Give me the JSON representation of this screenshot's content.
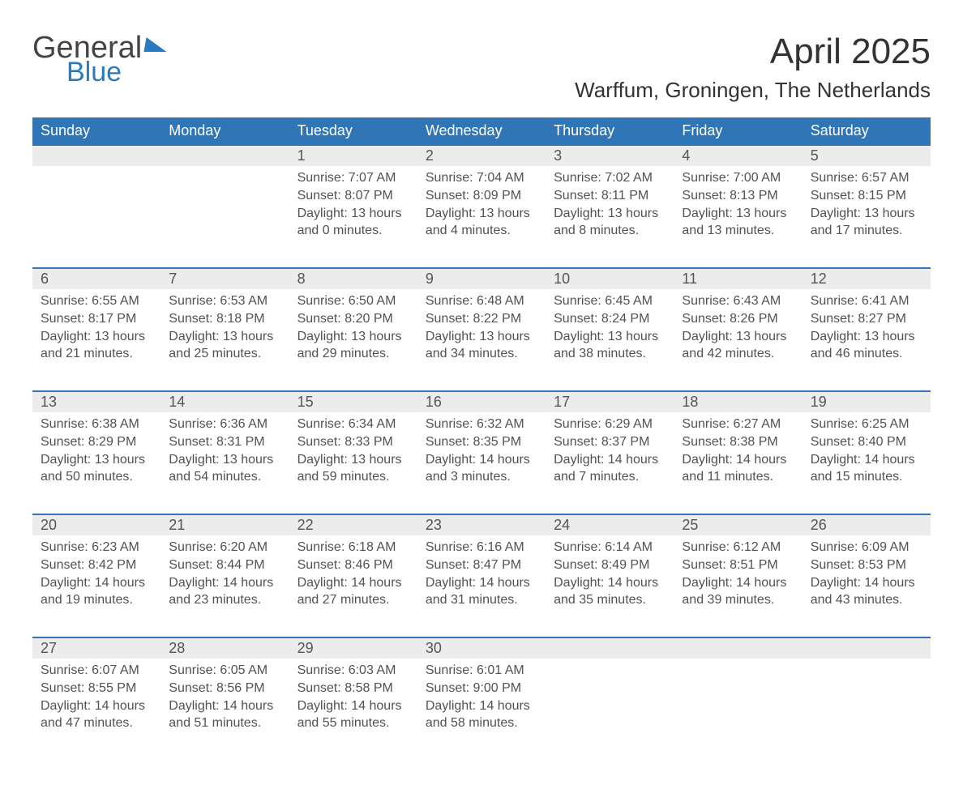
{
  "brand": {
    "word1": "General",
    "word2": "Blue"
  },
  "title": "April 2025",
  "location": "Warffum, Groningen, The Netherlands",
  "colors": {
    "header_bg": "#3075b6",
    "header_text": "#ffffff",
    "daynum_bg": "#ececec",
    "row_border": "#3075b6",
    "body_text": "#525252",
    "background": "#ffffff",
    "brand_accent": "#2a7abf"
  },
  "typography": {
    "title_fontsize": 44,
    "location_fontsize": 26,
    "header_fontsize": 18,
    "daynum_fontsize": 18,
    "cell_fontsize": 16
  },
  "layout": {
    "columns": 7,
    "body_rows": 5,
    "week_start": "Sunday"
  },
  "day_headers": [
    "Sunday",
    "Monday",
    "Tuesday",
    "Wednesday",
    "Thursday",
    "Friday",
    "Saturday"
  ],
  "weeks": [
    [
      null,
      null,
      {
        "n": "1",
        "sunrise": "7:07 AM",
        "sunset": "8:07 PM",
        "dl1": "13 hours",
        "dl2": "0 minutes"
      },
      {
        "n": "2",
        "sunrise": "7:04 AM",
        "sunset": "8:09 PM",
        "dl1": "13 hours",
        "dl2": "4 minutes"
      },
      {
        "n": "3",
        "sunrise": "7:02 AM",
        "sunset": "8:11 PM",
        "dl1": "13 hours",
        "dl2": "8 minutes"
      },
      {
        "n": "4",
        "sunrise": "7:00 AM",
        "sunset": "8:13 PM",
        "dl1": "13 hours",
        "dl2": "13 minutes"
      },
      {
        "n": "5",
        "sunrise": "6:57 AM",
        "sunset": "8:15 PM",
        "dl1": "13 hours",
        "dl2": "17 minutes"
      }
    ],
    [
      {
        "n": "6",
        "sunrise": "6:55 AM",
        "sunset": "8:17 PM",
        "dl1": "13 hours",
        "dl2": "21 minutes"
      },
      {
        "n": "7",
        "sunrise": "6:53 AM",
        "sunset": "8:18 PM",
        "dl1": "13 hours",
        "dl2": "25 minutes"
      },
      {
        "n": "8",
        "sunrise": "6:50 AM",
        "sunset": "8:20 PM",
        "dl1": "13 hours",
        "dl2": "29 minutes"
      },
      {
        "n": "9",
        "sunrise": "6:48 AM",
        "sunset": "8:22 PM",
        "dl1": "13 hours",
        "dl2": "34 minutes"
      },
      {
        "n": "10",
        "sunrise": "6:45 AM",
        "sunset": "8:24 PM",
        "dl1": "13 hours",
        "dl2": "38 minutes"
      },
      {
        "n": "11",
        "sunrise": "6:43 AM",
        "sunset": "8:26 PM",
        "dl1": "13 hours",
        "dl2": "42 minutes"
      },
      {
        "n": "12",
        "sunrise": "6:41 AM",
        "sunset": "8:27 PM",
        "dl1": "13 hours",
        "dl2": "46 minutes"
      }
    ],
    [
      {
        "n": "13",
        "sunrise": "6:38 AM",
        "sunset": "8:29 PM",
        "dl1": "13 hours",
        "dl2": "50 minutes"
      },
      {
        "n": "14",
        "sunrise": "6:36 AM",
        "sunset": "8:31 PM",
        "dl1": "13 hours",
        "dl2": "54 minutes"
      },
      {
        "n": "15",
        "sunrise": "6:34 AM",
        "sunset": "8:33 PM",
        "dl1": "13 hours",
        "dl2": "59 minutes"
      },
      {
        "n": "16",
        "sunrise": "6:32 AM",
        "sunset": "8:35 PM",
        "dl1": "14 hours",
        "dl2": "3 minutes"
      },
      {
        "n": "17",
        "sunrise": "6:29 AM",
        "sunset": "8:37 PM",
        "dl1": "14 hours",
        "dl2": "7 minutes"
      },
      {
        "n": "18",
        "sunrise": "6:27 AM",
        "sunset": "8:38 PM",
        "dl1": "14 hours",
        "dl2": "11 minutes"
      },
      {
        "n": "19",
        "sunrise": "6:25 AM",
        "sunset": "8:40 PM",
        "dl1": "14 hours",
        "dl2": "15 minutes"
      }
    ],
    [
      {
        "n": "20",
        "sunrise": "6:23 AM",
        "sunset": "8:42 PM",
        "dl1": "14 hours",
        "dl2": "19 minutes"
      },
      {
        "n": "21",
        "sunrise": "6:20 AM",
        "sunset": "8:44 PM",
        "dl1": "14 hours",
        "dl2": "23 minutes"
      },
      {
        "n": "22",
        "sunrise": "6:18 AM",
        "sunset": "8:46 PM",
        "dl1": "14 hours",
        "dl2": "27 minutes"
      },
      {
        "n": "23",
        "sunrise": "6:16 AM",
        "sunset": "8:47 PM",
        "dl1": "14 hours",
        "dl2": "31 minutes"
      },
      {
        "n": "24",
        "sunrise": "6:14 AM",
        "sunset": "8:49 PM",
        "dl1": "14 hours",
        "dl2": "35 minutes"
      },
      {
        "n": "25",
        "sunrise": "6:12 AM",
        "sunset": "8:51 PM",
        "dl1": "14 hours",
        "dl2": "39 minutes"
      },
      {
        "n": "26",
        "sunrise": "6:09 AM",
        "sunset": "8:53 PM",
        "dl1": "14 hours",
        "dl2": "43 minutes"
      }
    ],
    [
      {
        "n": "27",
        "sunrise": "6:07 AM",
        "sunset": "8:55 PM",
        "dl1": "14 hours",
        "dl2": "47 minutes"
      },
      {
        "n": "28",
        "sunrise": "6:05 AM",
        "sunset": "8:56 PM",
        "dl1": "14 hours",
        "dl2": "51 minutes"
      },
      {
        "n": "29",
        "sunrise": "6:03 AM",
        "sunset": "8:58 PM",
        "dl1": "14 hours",
        "dl2": "55 minutes"
      },
      {
        "n": "30",
        "sunrise": "6:01 AM",
        "sunset": "9:00 PM",
        "dl1": "14 hours",
        "dl2": "58 minutes"
      },
      null,
      null,
      null
    ]
  ],
  "labels": {
    "sunrise_prefix": "Sunrise: ",
    "sunset_prefix": "Sunset: ",
    "daylight_prefix": "Daylight: ",
    "and_word": "and "
  }
}
